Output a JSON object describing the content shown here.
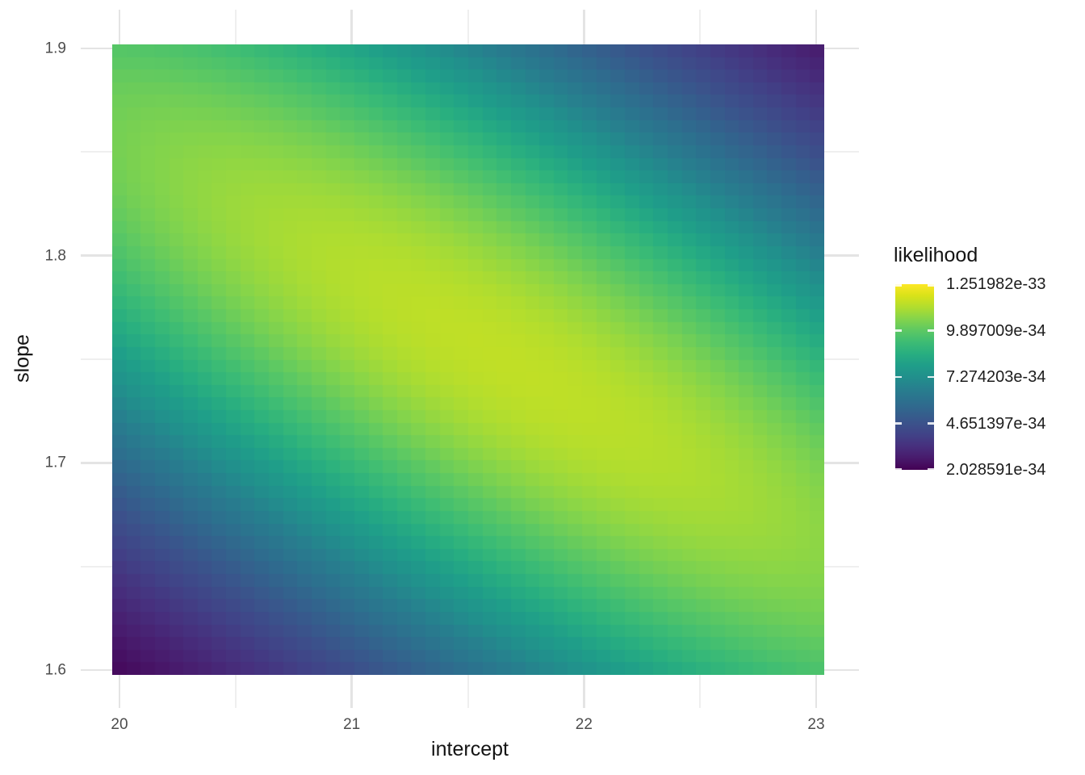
{
  "colors": {
    "background": "#ffffff",
    "grid_major": "#e4e4e4",
    "grid_minor": "#efefef",
    "axis_text": "#4d4d4d",
    "axis_title_text": "#141414",
    "legend_text": "#1c1c1c",
    "viridis_stops": [
      "#440154",
      "#481a6c",
      "#472f7d",
      "#414287",
      "#3b528b",
      "#33628d",
      "#2c718e",
      "#277f8e",
      "#21908c",
      "#1f9e89",
      "#28ae80",
      "#3dbc74",
      "#5cc863",
      "#84d44b",
      "#b0dd2f",
      "#d8e219",
      "#fde725"
    ]
  },
  "axes": {
    "x": {
      "title": "intercept",
      "tick_labels": [
        "20",
        "21",
        "22",
        "23"
      ],
      "tick_values": [
        20,
        21,
        22,
        23
      ],
      "minor_values": [
        20.5,
        21.5,
        22.5
      ]
    },
    "y": {
      "title": "slope",
      "tick_labels": [
        "1.9",
        "1.8",
        "1.7",
        "1.6"
      ],
      "tick_values": [
        1.9,
        1.8,
        1.7,
        1.6
      ],
      "minor_values": [
        1.85,
        1.75,
        1.65
      ]
    }
  },
  "legend": {
    "title": "likelihood",
    "labels": [
      "1.251982e-33",
      "9.897009e-34",
      "7.274203e-34",
      "4.651397e-34",
      "2.028591e-34"
    ],
    "position": "right",
    "colormap": "viridis"
  },
  "chart_data": {
    "type": "heatmap",
    "title": "",
    "xlabel": "intercept",
    "ylabel": "slope",
    "fill_label": "likelihood",
    "x_range": [
      20,
      23
    ],
    "y_range": [
      1.6,
      1.9
    ],
    "x_ticks": [
      20,
      21,
      22,
      23
    ],
    "y_ticks": [
      1.6,
      1.7,
      1.8,
      1.9
    ],
    "x_minor_ticks": [
      20.5,
      21.5,
      22.5
    ],
    "y_minor_ticks": [
      1.65,
      1.75,
      1.85
    ],
    "grid_n_x": 50,
    "grid_n_y": 50,
    "value_max_label": "1.251982e-33",
    "value_min_label": "2.028591e-34",
    "legend_breaks": [
      "1.251982e-33",
      "9.897009e-34",
      "7.274203e-34",
      "4.651397e-34",
      "2.028591e-34"
    ],
    "grid_lines": true,
    "surface_model": {
      "note": "likelihood ridge rendered as bivariate gaussian: w = exp(-(a*u^2 + b*v^2 + c*u*v)), u=(intercept-center_x)/scale_x, v=(slope-center_y)/scale_y; colors = viridis mapped over [t_min,t_max] after min-max normalising w on the 50x50 grid",
      "center_x": 21.65,
      "center_y": 1.75,
      "scale_x": 1.5,
      "scale_y": 0.15,
      "a": 0.34,
      "b": 0.63,
      "c": 0.79,
      "t_min": 0.025,
      "t_max": 0.9
    }
  }
}
